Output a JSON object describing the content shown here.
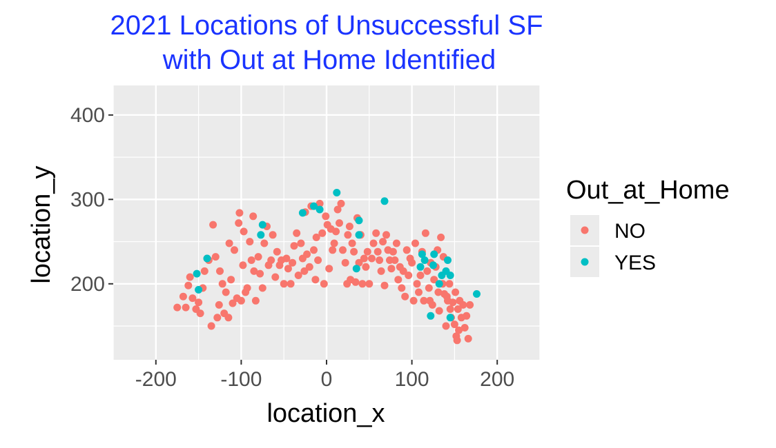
{
  "chart_data": {
    "type": "scatter",
    "title_lines": [
      "2021 Locations of Unsuccessful SF",
      "with Out at Home Identified"
    ],
    "xlabel": "location_x",
    "ylabel": "location_y",
    "xlim": [
      -250,
      250
    ],
    "ylim": [
      110,
      435
    ],
    "x_ticks": [
      -200,
      -100,
      0,
      100,
      200
    ],
    "x_tick_labels": [
      "-200",
      "-100",
      "0",
      "100",
      "200"
    ],
    "y_ticks": [
      200,
      300,
      400
    ],
    "y_tick_labels": [
      "200",
      "300",
      "400"
    ],
    "grid": true,
    "panel_background": "#ebebeb",
    "legend": {
      "title": "Out_at_Home",
      "position": "right"
    },
    "series": [
      {
        "name": "NO",
        "color": "#f8766d",
        "points": [
          [
            -175,
            172
          ],
          [
            -168,
            185
          ],
          [
            -165,
            172
          ],
          [
            -162,
            198
          ],
          [
            -160,
            208
          ],
          [
            -157,
            183
          ],
          [
            -153,
            170
          ],
          [
            -150,
            178
          ],
          [
            -148,
            165
          ],
          [
            -145,
            195
          ],
          [
            -143,
            215
          ],
          [
            -140,
            230
          ],
          [
            -138,
            228
          ],
          [
            -135,
            150
          ],
          [
            -133,
            270
          ],
          [
            -130,
            232
          ],
          [
            -128,
            160
          ],
          [
            -126,
            175
          ],
          [
            -125,
            215
          ],
          [
            -122,
            200
          ],
          [
            -120,
            165
          ],
          [
            -118,
            190
          ],
          [
            -115,
            160
          ],
          [
            -114,
            248
          ],
          [
            -112,
            205
          ],
          [
            -110,
            177
          ],
          [
            -108,
            240
          ],
          [
            -105,
            183
          ],
          [
            -103,
            272
          ],
          [
            -102,
            284
          ],
          [
            -100,
            180
          ],
          [
            -98,
            222
          ],
          [
            -97,
            262
          ],
          [
            -95,
            190
          ],
          [
            -93,
            195
          ],
          [
            -90,
            250
          ],
          [
            -88,
            228
          ],
          [
            -86,
            280
          ],
          [
            -85,
            215
          ],
          [
            -83,
            180
          ],
          [
            -80,
            232
          ],
          [
            -78,
            212
          ],
          [
            -75,
            195
          ],
          [
            -73,
            248
          ],
          [
            -70,
            268
          ],
          [
            -68,
            222
          ],
          [
            -65,
            228
          ],
          [
            -63,
            258
          ],
          [
            -60,
            208
          ],
          [
            -58,
            238
          ],
          [
            -55,
            222
          ],
          [
            -53,
            228
          ],
          [
            -50,
            200
          ],
          [
            -47,
            230
          ],
          [
            -45,
            218
          ],
          [
            -42,
            200
          ],
          [
            -40,
            225
          ],
          [
            -38,
            245
          ],
          [
            -35,
            260
          ],
          [
            -33,
            210
          ],
          [
            -30,
            248
          ],
          [
            -28,
            230
          ],
          [
            -26,
            215
          ],
          [
            -25,
            285
          ],
          [
            -23,
            235
          ],
          [
            -20,
            220
          ],
          [
            -18,
            292
          ],
          [
            -15,
            240
          ],
          [
            -13,
            205
          ],
          [
            -12,
            255
          ],
          [
            -10,
            228
          ],
          [
            -8,
            295
          ],
          [
            -5,
            260
          ],
          [
            -3,
            200
          ],
          [
            -1,
            280
          ],
          [
            1,
            270
          ],
          [
            3,
            218
          ],
          [
            5,
            265
          ],
          [
            7,
            240
          ],
          [
            9,
            248
          ],
          [
            11,
            262
          ],
          [
            13,
            288
          ],
          [
            15,
            272
          ],
          [
            17,
            295
          ],
          [
            19,
            240
          ],
          [
            22,
            225
          ],
          [
            24,
            200
          ],
          [
            25,
            258
          ],
          [
            27,
            268
          ],
          [
            28,
            205
          ],
          [
            30,
            248
          ],
          [
            32,
            238
          ],
          [
            34,
            202
          ],
          [
            36,
            278
          ],
          [
            38,
            225
          ],
          [
            40,
            258
          ],
          [
            42,
            200
          ],
          [
            44,
            230
          ],
          [
            46,
            220
          ],
          [
            48,
            238
          ],
          [
            50,
            200
          ],
          [
            53,
            230
          ],
          [
            55,
            248
          ],
          [
            58,
            260
          ],
          [
            60,
            238
          ],
          [
            62,
            228
          ],
          [
            64,
            215
          ],
          [
            66,
            250
          ],
          [
            68,
            198
          ],
          [
            70,
            258
          ],
          [
            72,
            240
          ],
          [
            74,
            228
          ],
          [
            76,
            218
          ],
          [
            78,
            238
          ],
          [
            80,
            228
          ],
          [
            82,
            248
          ],
          [
            84,
            205
          ],
          [
            86,
            220
          ],
          [
            88,
            195
          ],
          [
            90,
            215
          ],
          [
            92,
            185
          ],
          [
            94,
            240
          ],
          [
            96,
            210
          ],
          [
            98,
            230
          ],
          [
            100,
            225
          ],
          [
            102,
            180
          ],
          [
            104,
            248
          ],
          [
            106,
            200
          ],
          [
            108,
            190
          ],
          [
            110,
            210
          ],
          [
            112,
            238
          ],
          [
            114,
            180
          ],
          [
            116,
            260
          ],
          [
            118,
            215
          ],
          [
            120,
            195
          ],
          [
            121,
            180
          ],
          [
            122,
            225
          ],
          [
            124,
            175
          ],
          [
            126,
            205
          ],
          [
            128,
            220
          ],
          [
            130,
            240
          ],
          [
            131,
            190
          ],
          [
            132,
            168
          ],
          [
            134,
            255
          ],
          [
            136,
            200
          ],
          [
            137,
            232
          ],
          [
            138,
            188
          ],
          [
            140,
            150
          ],
          [
            141,
            185
          ],
          [
            142,
            180
          ],
          [
            144,
            200
          ],
          [
            145,
            170
          ],
          [
            146,
            160
          ],
          [
            148,
            178
          ],
          [
            150,
            152
          ],
          [
            151,
            190
          ],
          [
            152,
            138
          ],
          [
            153,
            133
          ],
          [
            154,
            170
          ],
          [
            155,
            145
          ],
          [
            156,
            180
          ],
          [
            158,
            160
          ],
          [
            160,
            175
          ],
          [
            162,
            148
          ],
          [
            164,
            162
          ],
          [
            166,
            135
          ],
          [
            168,
            175
          ]
        ]
      },
      {
        "name": "YES",
        "color": "#00bfc4",
        "points": [
          [
            -152,
            212
          ],
          [
            -150,
            193
          ],
          [
            -140,
            230
          ],
          [
            -77,
            258
          ],
          [
            -75,
            270
          ],
          [
            -28,
            284
          ],
          [
            -15,
            292
          ],
          [
            -8,
            288
          ],
          [
            12,
            308
          ],
          [
            38,
            275
          ],
          [
            38,
            258
          ],
          [
            35,
            218
          ],
          [
            68,
            298
          ],
          [
            110,
            220
          ],
          [
            112,
            235
          ],
          [
            115,
            228
          ],
          [
            122,
            162
          ],
          [
            125,
            222
          ],
          [
            126,
            235
          ],
          [
            132,
            200
          ],
          [
            135,
            210
          ],
          [
            140,
            215
          ],
          [
            142,
            228
          ],
          [
            145,
            210
          ],
          [
            145,
            160
          ],
          [
            176,
            188
          ]
        ]
      }
    ]
  }
}
